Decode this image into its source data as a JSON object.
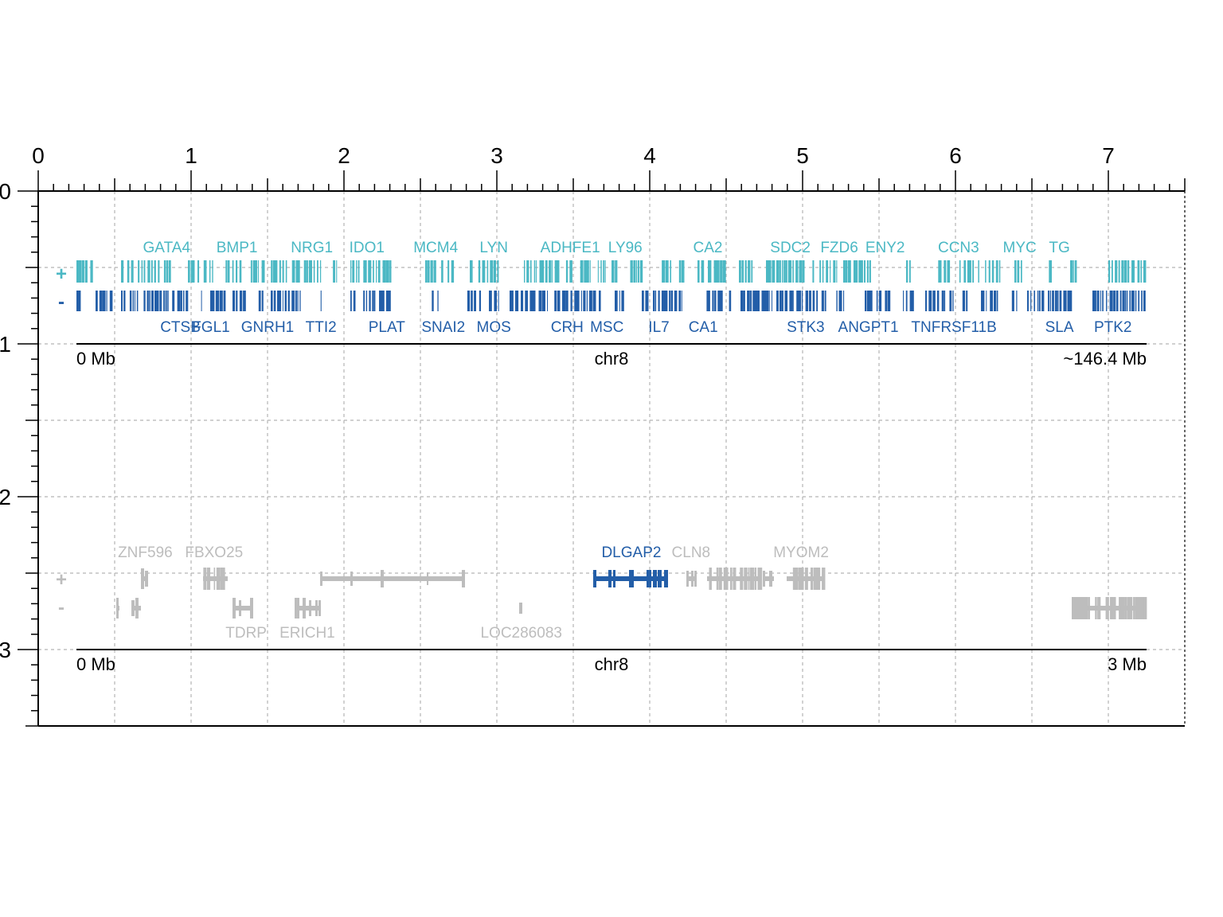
{
  "chart_data": {
    "type": "gene-track",
    "grid": true,
    "colors": {
      "plus": "#4BB8C4",
      "minus": "#235EA8",
      "highlight": "#235EA8",
      "muted": "#BDBDBD",
      "axis": "#000000",
      "grid": "#B5B5B5"
    },
    "axes": {
      "x": {
        "range": [
          0,
          7.5
        ],
        "major_ticks": [
          "0",
          "1",
          "2",
          "3",
          "4",
          "5",
          "6",
          "7"
        ]
      },
      "y": {
        "range": [
          0,
          3.5
        ],
        "major_ticks": [
          "0",
          "1",
          "2",
          "3"
        ]
      }
    },
    "panels": [
      {
        "chromosome": "chr8",
        "start_label": "0 Mb",
        "end_label": "~146.4 Mb",
        "strand_plus_label": "+",
        "strand_minus_label": "-",
        "plus_genes": [
          {
            "name": "GATA4",
            "x": 0.84
          },
          {
            "name": "BMP1",
            "x": 1.3
          },
          {
            "name": "NRG1",
            "x": 1.79
          },
          {
            "name": "IDO1",
            "x": 2.15
          },
          {
            "name": "MCM4",
            "x": 2.6
          },
          {
            "name": "LYN",
            "x": 2.98
          },
          {
            "name": "ADHFE1",
            "x": 3.48
          },
          {
            "name": "LY96",
            "x": 3.84
          },
          {
            "name": "CA2",
            "x": 4.38
          },
          {
            "name": "SDC2",
            "x": 4.92
          },
          {
            "name": "FZD6",
            "x": 5.24
          },
          {
            "name": "ENY2",
            "x": 5.54
          },
          {
            "name": "CCN3",
            "x": 6.02
          },
          {
            "name": "MYC",
            "x": 6.42
          },
          {
            "name": "TG",
            "x": 6.68
          }
        ],
        "minus_genes": [
          {
            "name": "CTSB",
            "x": 0.93
          },
          {
            "name": "FGL1",
            "x": 1.13
          },
          {
            "name": "GNRH1",
            "x": 1.5
          },
          {
            "name": "TTI2",
            "x": 1.85
          },
          {
            "name": "PLAT",
            "x": 2.28
          },
          {
            "name": "SNAI2",
            "x": 2.65
          },
          {
            "name": "MOS",
            "x": 2.98
          },
          {
            "name": "CRH",
            "x": 3.46
          },
          {
            "name": "MSC",
            "x": 3.72
          },
          {
            "name": "IL7",
            "x": 4.06
          },
          {
            "name": "CA1",
            "x": 4.35
          },
          {
            "name": "STK3",
            "x": 5.02
          },
          {
            "name": "ANGPT1",
            "x": 5.43
          },
          {
            "name": "TNFRSF11B",
            "x": 5.99
          },
          {
            "name": "SLA",
            "x": 6.68
          },
          {
            "name": "PTK2",
            "x": 7.03
          }
        ]
      },
      {
        "chromosome": "chr8",
        "start_label": "0 Mb",
        "end_label": "3 Mb",
        "strand_plus_label": "+",
        "strand_minus_label": "-",
        "genes": [
          {
            "name": "ZNF596",
            "strand": "+",
            "x": 0.7,
            "highlight": false
          },
          {
            "name": "FBXO25",
            "strand": "+",
            "x": 1.15,
            "highlight": false
          },
          {
            "name": "DLGAP2",
            "strand": "+",
            "x": 3.88,
            "highlight": true
          },
          {
            "name": "CLN8",
            "strand": "+",
            "x": 4.27,
            "highlight": false
          },
          {
            "name": "MYOM2",
            "strand": "+",
            "x": 4.99,
            "highlight": false
          },
          {
            "name": "TDRP",
            "strand": "-",
            "x": 1.36,
            "highlight": false
          },
          {
            "name": "ERICH1",
            "strand": "-",
            "x": 1.76,
            "highlight": false
          },
          {
            "name": "LOC286083",
            "strand": "-",
            "x": 3.16,
            "highlight": false
          }
        ]
      }
    ]
  }
}
